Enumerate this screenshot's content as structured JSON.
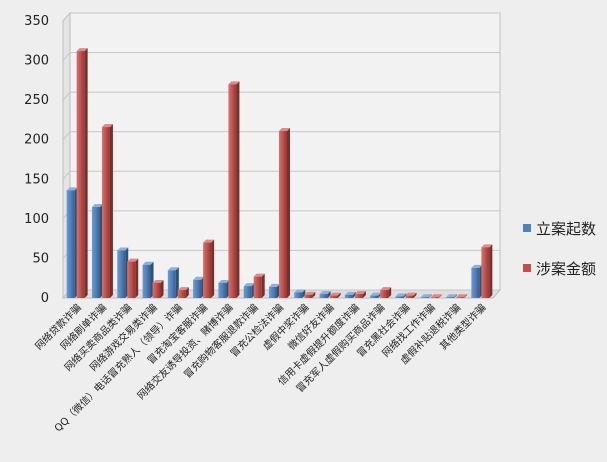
{
  "chart_data": {
    "type": "bar",
    "title": "",
    "xlabel": "",
    "ylabel": "",
    "ylim": [
      0,
      350
    ],
    "yticks": [
      0,
      50,
      100,
      150,
      200,
      250,
      300,
      350
    ],
    "grid": true,
    "legend_position": "right",
    "categories": [
      "网络贷款诈骗",
      "网络刷单诈骗",
      "网络买卖商品类诈骗",
      "网络游戏交易类诈骗",
      "QQ（微信）电话冒充熟人（领导）诈骗",
      "冒充淘宝客服诈骗",
      "网络交友诱导投资、赌博诈骗",
      "冒充购物客服退款诈骗",
      "冒充公检法诈骗",
      "虚假中奖诈骗",
      "微信好友诈骗",
      "信用卡虚假提升额度诈骗",
      "冒充军人虚假购买商品诈骗",
      "冒充黑社会诈骗",
      "网络找工作诈骗",
      "虚假补贴退税诈骗",
      "其他类型诈骗"
    ],
    "series": [
      {
        "name": "立案起数",
        "color": "#4f81bd",
        "values": [
          136,
          115,
          60,
          42,
          35,
          23,
          19,
          15,
          14,
          7,
          5,
          4,
          3,
          2,
          1,
          1,
          38
        ]
      },
      {
        "name": "涉案金额",
        "color": "#c0504d",
        "values": [
          312,
          216,
          46,
          19,
          10,
          70,
          270,
          27,
          211,
          4,
          3,
          5,
          10,
          3,
          1,
          1,
          64
        ]
      }
    ]
  }
}
